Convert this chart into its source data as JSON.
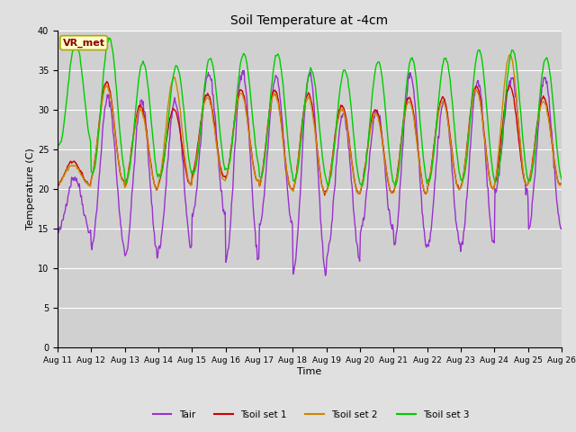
{
  "title": "Soil Temperature at -4cm",
  "xlabel": "Time",
  "ylabel": "Temperature (C)",
  "ylim": [
    0,
    40
  ],
  "yticks": [
    0,
    5,
    10,
    15,
    20,
    25,
    30,
    35,
    40
  ],
  "x_tick_labels": [
    "Aug 11",
    "Aug 12",
    "Aug 13",
    "Aug 14",
    "Aug 15",
    "Aug 16",
    "Aug 17",
    "Aug 18",
    "Aug 19",
    "Aug 20",
    "Aug 21",
    "Aug 22",
    "Aug 23",
    "Aug 24",
    "Aug 25",
    "Aug 26"
  ],
  "colors": {
    "Tair": "#9932CC",
    "Tsoil1": "#CC0000",
    "Tsoil2": "#CC8800",
    "Tsoil3": "#00CC00"
  },
  "legend_labels": [
    "Tair",
    "Tsoil set 1",
    "Tsoil set 2",
    "Tsoil set 3"
  ],
  "background_color": "#e0e0e0",
  "plot_bg_color": "#d0d0d0",
  "annotation_text": "VR_met",
  "annotation_bg": "#ffffcc",
  "annotation_border": "#aaaa00",
  "annotation_text_color": "#880000",
  "grid_color": "#ffffff",
  "n_days": 15,
  "tair_daily_min": [
    14.5,
    12.8,
    11.5,
    12.5,
    16.8,
    11.0,
    15.5,
    9.5,
    11.5,
    14.5,
    13.0,
    12.8,
    12.8,
    19.5,
    15.0
  ],
  "tair_daily_max": [
    21.5,
    31.5,
    31.0,
    31.0,
    34.5,
    35.0,
    34.0,
    34.5,
    29.5,
    30.0,
    34.5,
    31.0,
    33.5,
    34.0,
    34.0
  ],
  "tsoil1_daily_min": [
    20.5,
    21.0,
    20.0,
    20.5,
    21.5,
    21.0,
    20.0,
    19.5,
    19.5,
    19.5,
    19.5,
    20.0,
    20.0,
    20.5,
    20.5
  ],
  "tsoil1_daily_max": [
    23.5,
    33.5,
    30.5,
    30.0,
    32.0,
    32.5,
    32.5,
    32.0,
    30.5,
    30.0,
    31.5,
    31.5,
    33.0,
    33.0,
    31.5
  ],
  "tsoil2_daily_min": [
    20.5,
    21.0,
    20.0,
    20.5,
    21.0,
    21.0,
    20.0,
    19.5,
    19.5,
    19.5,
    19.5,
    20.0,
    20.0,
    20.5,
    20.5
  ],
  "tsoil2_daily_max": [
    23.0,
    33.0,
    30.0,
    34.0,
    31.5,
    32.0,
    32.0,
    31.5,
    30.0,
    29.5,
    31.0,
    31.0,
    32.5,
    37.0,
    31.0
  ],
  "tsoil3_daily_min": [
    25.5,
    22.0,
    21.0,
    21.5,
    22.0,
    22.5,
    21.5,
    21.0,
    20.5,
    20.5,
    20.5,
    21.0,
    21.0,
    21.0,
    21.0
  ],
  "tsoil3_daily_max": [
    38.5,
    39.0,
    36.0,
    35.5,
    36.5,
    37.0,
    37.0,
    35.0,
    35.0,
    36.0,
    36.5,
    36.5,
    37.5,
    37.5,
    36.5
  ]
}
